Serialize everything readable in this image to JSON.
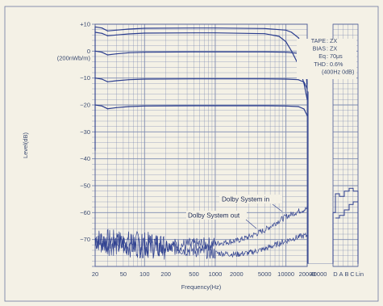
{
  "chart_data": {
    "type": "line",
    "xlabel": "Frequency(Hz)",
    "ylabel": "Level(dB)",
    "ylim": [
      -80,
      10
    ],
    "x_range": [
      20,
      20000
    ],
    "x_scale": "log",
    "grid": true,
    "y_ticks": [
      {
        "v": 10,
        "label": "+10"
      },
      {
        "v": 0,
        "label": "0"
      },
      {
        "v": -10,
        "label": "−10"
      },
      {
        "v": -20,
        "label": "−20"
      },
      {
        "v": -30,
        "label": "−30"
      },
      {
        "v": -40,
        "label": "−40"
      },
      {
        "v": -50,
        "label": "−50"
      },
      {
        "v": -60,
        "label": "−60"
      },
      {
        "v": -70,
        "label": "−70"
      }
    ],
    "zero_ref_label": "(200nWb/m)",
    "x_ticks": [
      {
        "v": 20,
        "label": "20"
      },
      {
        "v": 50,
        "label": "50"
      },
      {
        "v": 100,
        "label": "100"
      },
      {
        "v": 200,
        "label": "200"
      },
      {
        "v": 500,
        "label": "500"
      },
      {
        "v": 1000,
        "label": "1000"
      },
      {
        "v": 2000,
        "label": "2000"
      },
      {
        "v": 5000,
        "label": "5000"
      },
      {
        "v": 10000,
        "label": "10000"
      },
      {
        "v": 20000,
        "label": "20000"
      },
      {
        "v": 40000,
        "label": "40000"
      }
    ],
    "weighting_labels": [
      "D",
      "A",
      "B",
      "C",
      "Lin"
    ],
    "specs": [
      {
        "label": "TAPE",
        "value": ": ZX"
      },
      {
        "label": "BIAS",
        "value": ": ZX"
      },
      {
        "label": "Eq",
        "value": ": 70μs"
      },
      {
        "label": "THD",
        "value": ": 0.6%"
      },
      {
        "label": "",
        "value": "(400Hz 0dB)"
      }
    ],
    "annotations": [
      "Dolby System in",
      "Dolby System out"
    ],
    "series": [
      {
        "x": [
          20,
          25,
          30,
          40,
          60,
          100,
          500,
          1000,
          5000,
          10000,
          12000,
          15000,
          17000,
          19000,
          20000
        ],
        "y": [
          9,
          8.6,
          7.5,
          7.8,
          8.2,
          8.5,
          8.6,
          8.6,
          8.4,
          7.8,
          7,
          5,
          2.5,
          -1,
          -15
        ]
      },
      {
        "x": [
          20,
          25,
          30,
          40,
          60,
          100,
          500,
          1000,
          5000,
          8000,
          10000,
          12000,
          15000,
          18000,
          20000
        ],
        "y": [
          7,
          6.6,
          5.7,
          6,
          6.4,
          6.7,
          6.8,
          6.8,
          6.5,
          5.5,
          3.5,
          0,
          -5,
          -12,
          -18
        ]
      },
      {
        "x": [
          20,
          25,
          30,
          40,
          60,
          100,
          500,
          1000,
          5000,
          10000,
          15000,
          18000,
          20000
        ],
        "y": [
          0,
          -0.4,
          -1.4,
          -1,
          -0.6,
          -0.4,
          -0.3,
          -0.3,
          -0.3,
          -0.4,
          -0.8,
          -2,
          -12
        ]
      },
      {
        "x": [
          20,
          25,
          30,
          40,
          60,
          100,
          500,
          1000,
          5000,
          10000,
          15000,
          18000,
          20000
        ],
        "y": [
          -10,
          -10.4,
          -11.4,
          -11,
          -10.6,
          -10.4,
          -10.3,
          -10.3,
          -10.3,
          -10.4,
          -10.6,
          -11.5,
          -14
        ]
      },
      {
        "x": [
          20,
          25,
          30,
          40,
          60,
          100,
          500,
          1000,
          5000,
          10000,
          15000,
          18000,
          20000
        ],
        "y": [
          -20,
          -20.4,
          -21.4,
          -21,
          -20.6,
          -20.4,
          -20.3,
          -20.3,
          -20.3,
          -20.4,
          -20.6,
          -21.5,
          -24
        ]
      },
      {
        "name": "Dolby System out",
        "noise": true,
        "x": [
          20,
          30,
          50,
          100,
          200,
          500,
          1000,
          2000,
          3000,
          5000,
          8000,
          10000,
          15000,
          20000
        ],
        "y": [
          -70,
          -70.5,
          -71,
          -71.5,
          -72,
          -72,
          -71.5,
          -70.5,
          -69,
          -66.5,
          -63,
          -61.5,
          -59.5,
          -58.5
        ]
      },
      {
        "name": "Dolby System in",
        "noise": true,
        "x": [
          20,
          30,
          50,
          100,
          200,
          500,
          1000,
          2000,
          3000,
          5000,
          8000,
          10000,
          15000,
          20000
        ],
        "y": [
          -71,
          -71.5,
          -72,
          -72.5,
          -73,
          -74,
          -75,
          -75.5,
          -75,
          -73.5,
          -71.5,
          -70.5,
          -69,
          -68.5
        ]
      }
    ]
  }
}
